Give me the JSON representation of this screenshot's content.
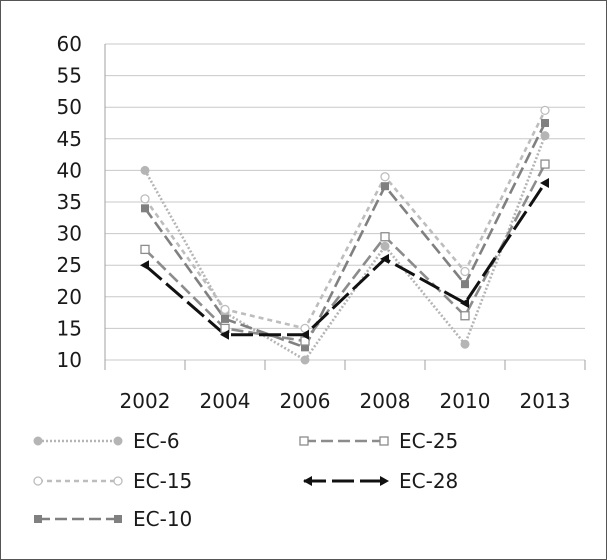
{
  "chart_data": {
    "type": "line",
    "title": "",
    "xlabel": "",
    "ylabel": "",
    "categories": [
      "2002",
      "2004",
      "2006",
      "2008",
      "2010",
      "2013"
    ],
    "ylim": [
      10,
      60
    ],
    "yticks": [
      "10",
      "15",
      "20",
      "25",
      "30",
      "35",
      "40",
      "45",
      "50",
      "55",
      "60"
    ],
    "grid": "horizontal",
    "legend": "bottom",
    "series": [
      {
        "name": "EC-6",
        "values": [
          40,
          17.5,
          10,
          28,
          12.5,
          45.5
        ],
        "color": "#b5b5b5",
        "dash": "dotted",
        "marker": "filled-circle"
      },
      {
        "name": "EC-15",
        "values": [
          35.5,
          18,
          15,
          39,
          24,
          49.5
        ],
        "color": "#bdbdbd",
        "dash": "short-dash",
        "marker": "open-circle"
      },
      {
        "name": "EC-10",
        "values": [
          34,
          16.5,
          12,
          37.5,
          22,
          47.5
        ],
        "color": "#808080",
        "dash": "dash",
        "marker": "filled-square"
      },
      {
        "name": "EC-25",
        "values": [
          27.5,
          15,
          13,
          29.5,
          17,
          41
        ],
        "color": "#8c8c8c",
        "dash": "dash",
        "marker": "open-square"
      },
      {
        "name": "EC-28",
        "values": [
          25,
          14,
          14,
          26,
          19,
          38
        ],
        "color": "#111111",
        "dash": "long-dash",
        "marker": "filled-triangle"
      }
    ]
  }
}
